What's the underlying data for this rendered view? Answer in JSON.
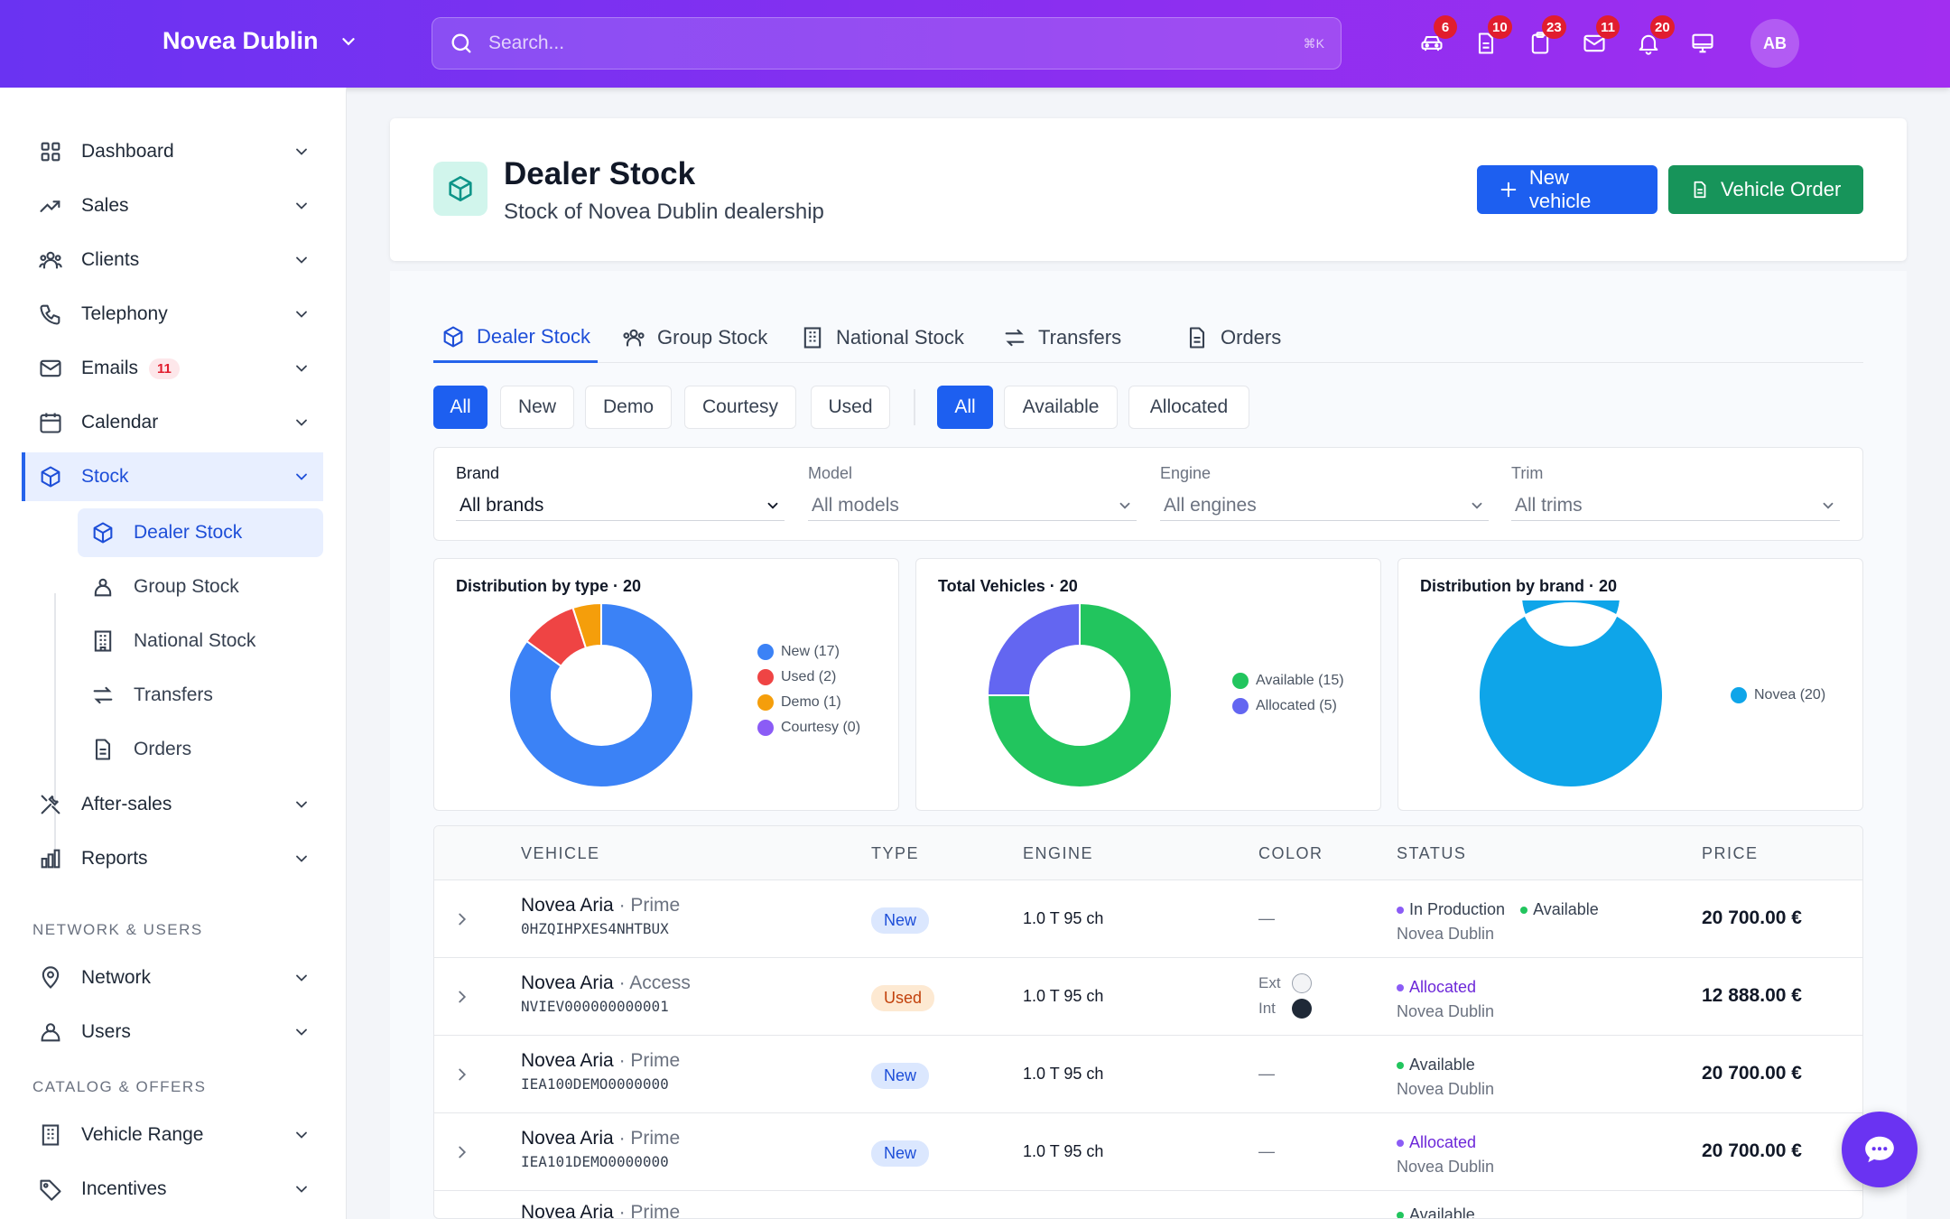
{
  "header": {
    "brand": "Novea Dublin",
    "search_placeholder": "Search...",
    "search_shortcut": "⌘K",
    "icons": [
      {
        "name": "car-icon",
        "badge": "6"
      },
      {
        "name": "document-icon",
        "badge": "10"
      },
      {
        "name": "clipboard-icon",
        "badge": "23"
      },
      {
        "name": "mail-icon",
        "badge": "11"
      },
      {
        "name": "bell-icon",
        "badge": "20"
      },
      {
        "name": "monitor-icon",
        "badge": ""
      }
    ],
    "avatar": "AB"
  },
  "sidebar": {
    "items": [
      {
        "label": "Dashboard"
      },
      {
        "label": "Sales"
      },
      {
        "label": "Clients"
      },
      {
        "label": "Telephony"
      },
      {
        "label": "Emails",
        "count": "11"
      },
      {
        "label": "Calendar"
      },
      {
        "label": "Stock"
      },
      {
        "label": "After-sales"
      },
      {
        "label": "Reports"
      }
    ],
    "stock_sub": [
      {
        "label": "Dealer Stock"
      },
      {
        "label": "Group Stock"
      },
      {
        "label": "National Stock"
      },
      {
        "label": "Transfers"
      },
      {
        "label": "Orders"
      }
    ],
    "section_network": "NETWORK & USERS",
    "network_items": [
      {
        "label": "Network"
      },
      {
        "label": "Users"
      }
    ],
    "section_catalog": "CATALOG & OFFERS",
    "catalog_items": [
      {
        "label": "Vehicle Range"
      },
      {
        "label": "Incentives"
      }
    ]
  },
  "page": {
    "title": "Dealer Stock",
    "subtitle": "Stock of Novea Dublin dealership",
    "new_vehicle": "New vehicle",
    "vehicle_order": "Vehicle Order"
  },
  "tabs": [
    "Dealer Stock",
    "Group Stock",
    "National Stock",
    "Transfers",
    "Orders"
  ],
  "type_filters": [
    "All",
    "New",
    "Demo",
    "Courtesy",
    "Used"
  ],
  "status_filters": [
    "All",
    "Available",
    "Allocated"
  ],
  "filters": {
    "brand": {
      "label": "Brand",
      "value": "All brands"
    },
    "model": {
      "label": "Model",
      "value": "All models"
    },
    "engine": {
      "label": "Engine",
      "value": "All engines"
    },
    "trim": {
      "label": "Trim",
      "value": "All trims"
    }
  },
  "chart_data": [
    {
      "type": "pie",
      "title": "Distribution by type · 20",
      "categories": [
        "New (17)",
        "Used (2)",
        "Demo (1)",
        "Courtesy (0)"
      ],
      "values": [
        17,
        2,
        1,
        0
      ],
      "colors": [
        "#3b82f6",
        "#ef4444",
        "#f59e0b",
        "#8b5cf6"
      ]
    },
    {
      "type": "pie",
      "title": "Total Vehicles · 20",
      "categories": [
        "Available (15)",
        "Allocated (5)"
      ],
      "values": [
        15,
        5
      ],
      "colors": [
        "#22c55e",
        "#6366f1"
      ]
    },
    {
      "type": "pie",
      "title": "Distribution by brand · 20",
      "categories": [
        "Novea (20)"
      ],
      "values": [
        20
      ],
      "colors": [
        "#0ea5e9"
      ]
    }
  ],
  "table": {
    "columns": [
      "VEHICLE",
      "TYPE",
      "ENGINE",
      "COLOR",
      "STATUS",
      "PRICE"
    ],
    "rows": [
      {
        "model": "Novea Aria",
        "trim": " · Prime",
        "vin": "0HZQIHPXES4NHTBUX",
        "type": "New",
        "engine": "1.0 T 95 ch",
        "color": "—",
        "status": [
          "In Production",
          "Available"
        ],
        "dealer": "Novea Dublin",
        "price": "20 700.00 €"
      },
      {
        "model": "Novea Aria",
        "trim": " · Access",
        "vin": "NVIEV000000000001",
        "type": "Used",
        "engine": "1.0 T 95 ch",
        "color_ext": "Ext",
        "color_int": "Int",
        "status": [
          "Allocated"
        ],
        "dealer": "Novea Dublin",
        "price": "12 888.00 €"
      },
      {
        "model": "Novea Aria",
        "trim": " · Prime",
        "vin": "IEA100DEMO0000000",
        "type": "New",
        "engine": "1.0 T 95 ch",
        "color": "—",
        "status": [
          "Available"
        ],
        "dealer": "Novea Dublin",
        "price": "20 700.00 €"
      },
      {
        "model": "Novea Aria",
        "trim": " · Prime",
        "vin": "IEA101DEMO0000000",
        "type": "New",
        "engine": "1.0 T 95 ch",
        "color": "—",
        "status": [
          "Allocated"
        ],
        "dealer": "Novea Dublin",
        "price": "20 700.00 €"
      },
      {
        "model": "Novea Aria",
        "trim": " · Prime",
        "vin": "",
        "type": "",
        "engine": "",
        "color": "",
        "status": [
          "Available"
        ],
        "dealer": "",
        "price": ""
      }
    ]
  }
}
